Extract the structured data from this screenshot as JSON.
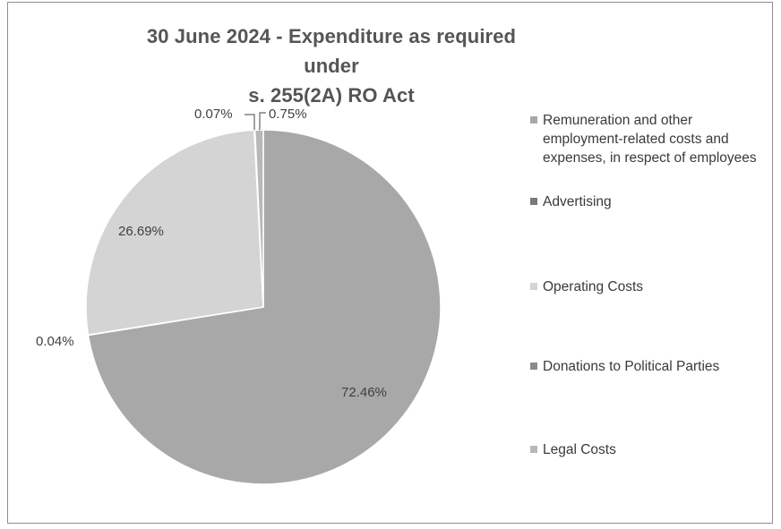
{
  "chart_data": {
    "type": "pie",
    "title": "30 June 2024 - Expenditure as required under s. 255(2A) RO Act",
    "title_lines": [
      "30 June 2024 - Expenditure as required under",
      "s. 255(2A) RO Act"
    ],
    "legend_position": "right",
    "slices": [
      {
        "label": "Remuneration and other employment-related costs and expenses, in respect of employees",
        "value": 72.46,
        "data_label": "72.46%",
        "color": "#a8a8a8"
      },
      {
        "label": "Advertising",
        "value": 0.04,
        "data_label": "0.04%",
        "color": "#7a7a7a"
      },
      {
        "label": "Operating Costs",
        "value": 26.69,
        "data_label": "26.69%",
        "color": "#d4d4d4"
      },
      {
        "label": "Donations to Political Parties",
        "value": 0.07,
        "data_label": "0.07%",
        "color": "#8c8c8c"
      },
      {
        "label": "Legal Costs",
        "value": 0.75,
        "data_label": "0.75%",
        "color": "#b8b8b8"
      }
    ]
  }
}
